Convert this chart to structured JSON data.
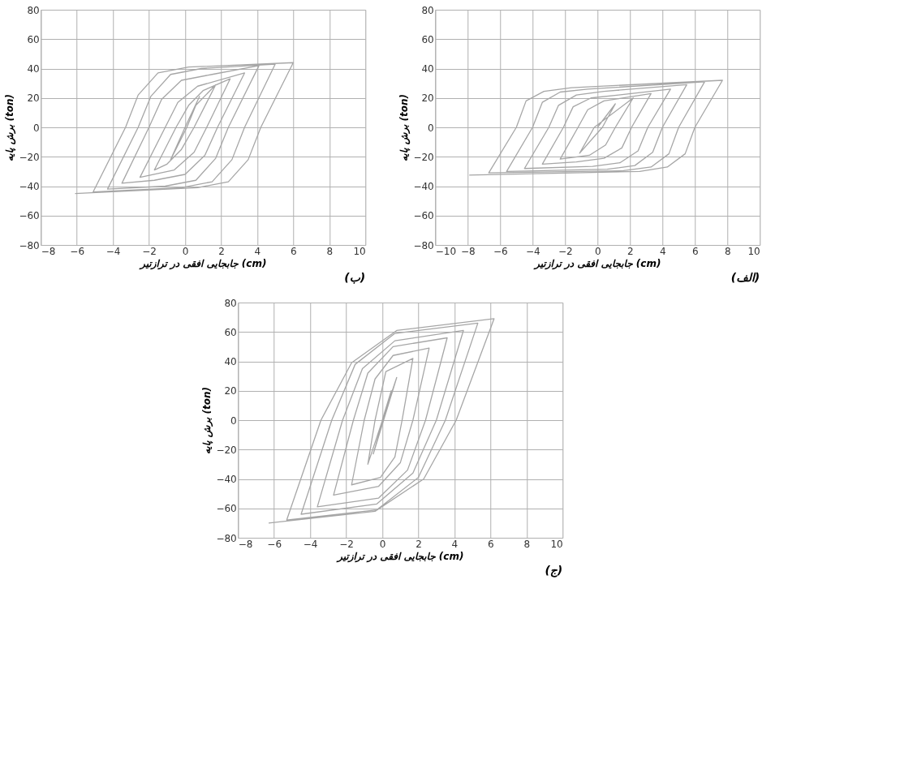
{
  "chart_data": [
    {
      "type": "line",
      "xlabel": "جابجایی افقی در ترازتیر (cm)",
      "ylabel": "برش پایه (ton)",
      "annotations": [
        "(ب)"
      ],
      "xlim": [
        -8,
        10
      ],
      "ylim": [
        -80,
        80
      ],
      "xticks": [
        -8,
        -6,
        -4,
        -2,
        0,
        2,
        4,
        6,
        8,
        10
      ],
      "yticks": [
        -80,
        -60,
        -40,
        -20,
        0,
        20,
        40,
        60,
        80
      ],
      "grid": true,
      "line_style": "solid",
      "series": [
        {
          "color": "#a6a6a6",
          "x": [
            0,
            0.8,
            0,
            -0.8,
            0.1,
            0.6,
            1.7,
            0.5,
            -0.2,
            -1.0,
            -1.7,
            -0.5,
            0.2,
            1.0,
            2.5,
            1.2,
            0.5,
            -0.6,
            -2.5,
            -1.1,
            -0.4,
            0.7,
            3.3,
            1.8,
            1.1,
            0,
            -1.7,
            -3.5,
            -2.0,
            -1.3,
            -0.2,
            1.5,
            4.1,
            2.4,
            1.7,
            0.6,
            -1.1,
            -4.3,
            -2.6,
            -1.9,
            -0.8,
            0.9,
            5.0,
            3.3,
            2.6,
            1.5,
            -0.2,
            -5.1,
            -3.3,
            -2.6,
            -1.5,
            0.2,
            6.0,
            4.2,
            3.5,
            2.4,
            0.7,
            -6.1
          ],
          "values": [
            0,
            21,
            0,
            -22,
            0,
            15,
            29,
            0,
            -15,
            -25,
            -29,
            0,
            15,
            25,
            33,
            0,
            -17,
            -29,
            -34,
            0,
            17,
            28,
            37,
            0,
            -19,
            -32,
            -36,
            -38,
            0,
            19,
            32,
            36,
            42,
            0,
            -21,
            -36,
            -40,
            -42,
            0,
            21,
            36,
            40,
            43,
            0,
            -22,
            -37,
            -41,
            -44,
            0,
            22,
            37,
            41,
            44,
            0,
            -22,
            -37,
            -41,
            -45
          ]
        }
      ]
    },
    {
      "type": "line",
      "xlabel": "جابجایی افقی در ترازتیر (cm)",
      "ylabel": "برش پایه (ton)",
      "annotations": [
        "(الف)"
      ],
      "xlim": [
        -10,
        10
      ],
      "ylim": [
        -80,
        80
      ],
      "xticks": [
        -10,
        -8,
        -6,
        -4,
        -2,
        0,
        2,
        4,
        6,
        8,
        10
      ],
      "yticks": [
        -80,
        -60,
        -40,
        -20,
        0,
        20,
        40,
        60,
        80
      ],
      "grid": true,
      "line_style": "solid",
      "series": [
        {
          "color": "#a6a6a6",
          "x": [
            0,
            1.1,
            0.3,
            -1.1,
            -0.2,
            2.2,
            1.1,
            0.5,
            -0.5,
            -2.3,
            -1.2,
            -0.6,
            0.4,
            3.3,
            2.1,
            1.5,
            0.4,
            -1.3,
            -3.4,
            -2.1,
            -1.5,
            -0.4,
            1.3,
            4.5,
            3.1,
            2.5,
            1.4,
            -0.3,
            -4.5,
            -3.0,
            -2.4,
            -1.3,
            0.4,
            5.5,
            4.0,
            3.4,
            2.3,
            0.6,
            -5.6,
            -4.0,
            -3.4,
            -2.3,
            -0.6,
            6.6,
            5.0,
            4.4,
            3.3,
            1.6,
            -6.7,
            -5.0,
            -4.4,
            -3.3,
            -1.6,
            7.7,
            6.0,
            5.4,
            4.3,
            2.6,
            -7.9
          ],
          "values": [
            0,
            16,
            0,
            -17.6,
            0,
            20,
            0,
            -12,
            -19,
            -21.6,
            0,
            12,
            18,
            23,
            0,
            -14,
            -21,
            -23.5,
            -25,
            0,
            14,
            20,
            22,
            26,
            0,
            -16,
            -24,
            -26.5,
            -28,
            0,
            15,
            22,
            24.5,
            29,
            0,
            -17,
            -26,
            -28.5,
            -30,
            0,
            17,
            24,
            26,
            31,
            0,
            -18,
            -27,
            -29.5,
            -31,
            0,
            18,
            24.5,
            27,
            32,
            0,
            -18,
            -27,
            -30,
            -32.5
          ]
        }
      ]
    },
    {
      "type": "line",
      "xlabel": "جابجایی افقی در ترازتیر (cm)",
      "ylabel": "برش پایه (ton)",
      "annotations": [
        "(ج)"
      ],
      "xlim": [
        -8,
        10
      ],
      "ylim": [
        -80,
        80
      ],
      "xticks": [
        -8,
        -6,
        -4,
        -2,
        0,
        2,
        4,
        6,
        8,
        10
      ],
      "yticks": [
        -80,
        -60,
        -40,
        -20,
        0,
        20,
        40,
        60,
        80
      ],
      "grid": true,
      "line_style": "solid",
      "series": [
        {
          "color": "#a6a6a6",
          "x": [
            0,
            0.5,
            -0.5,
            0.8,
            -0.8,
            -0.4,
            0.2,
            1.7,
            1.1,
            0.7,
            -0.1,
            -1.7,
            -1.0,
            -0.4,
            0.6,
            2.6,
            1.7,
            1.0,
            -0.2,
            -2.7,
            -1.6,
            -0.8,
            0.6,
            3.6,
            2.4,
            1.4,
            -0.2,
            -3.6,
            -2.2,
            -1.1,
            0.7,
            4.5,
            3.0,
            1.7,
            -0.3,
            -4.5,
            -2.8,
            -1.5,
            0.7,
            5.3,
            3.5,
            2.0,
            -0.3,
            -5.3,
            -3.4,
            -1.7,
            0.8,
            6.2,
            4.1,
            2.3,
            -0.4,
            -6.3
          ],
          "values": [
            0,
            20,
            -23,
            29,
            -30,
            0,
            33,
            42,
            0,
            -25,
            -39,
            -44,
            0,
            28,
            44,
            49,
            0,
            -29,
            -45,
            -51,
            0,
            32,
            50,
            56,
            0,
            -34,
            -53,
            -59,
            0,
            35,
            54,
            61,
            0,
            -36,
            -57,
            -64,
            0,
            38,
            59,
            66,
            0,
            -39,
            -61,
            -68,
            0,
            39,
            61,
            69,
            0,
            -40,
            -62,
            -70
          ]
        }
      ]
    }
  ]
}
